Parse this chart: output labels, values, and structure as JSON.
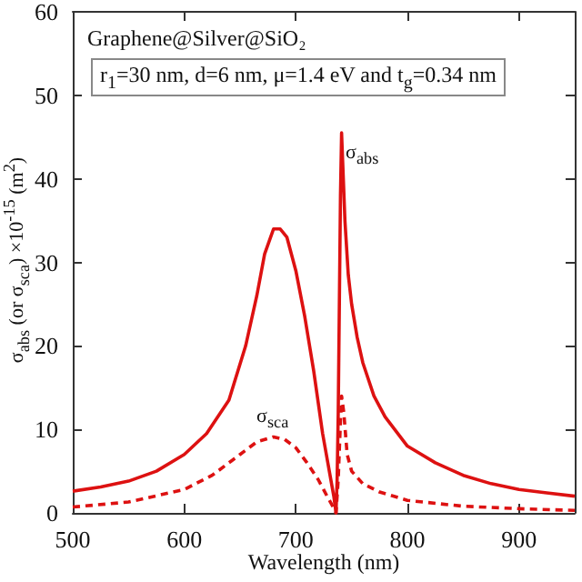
{
  "chart_data": {
    "type": "line",
    "title": "Graphene@Silver@SiO₂",
    "subtitle": "r$_{1}$=30 nm, d=6 nm, μ=1.4 eV and t$_{g}$=0.34 nm",
    "xlabel": "Wavelength (nm)",
    "ylabel": "σ$_{abs}$ (or σ$_{sca}$) ×10$^{-15}$ (m$^{2}$)",
    "xlim": [
      500,
      950
    ],
    "xticks": [
      500,
      600,
      700,
      800,
      900
    ],
    "ylim": [
      0,
      60
    ],
    "yticks": [
      0,
      10,
      20,
      30,
      40,
      50,
      60
    ],
    "grid": false,
    "marker": "none",
    "series": [
      {
        "color": "#dd1111",
        "line_style": "solid",
        "x": [
          500,
          525,
          550,
          575,
          600,
          620,
          640,
          655,
          665,
          672,
          680,
          686,
          692,
          700,
          708,
          716,
          724,
          730,
          734,
          736,
          737,
          738,
          739,
          740,
          741,
          742,
          744,
          747,
          750,
          755,
          760,
          770,
          780,
          800,
          825,
          850,
          875,
          900,
          925,
          950
        ],
        "values": [
          2.6,
          3.1,
          3.8,
          5,
          7,
          9.5,
          13.5,
          20,
          26,
          31,
          34,
          34,
          33,
          29,
          23.5,
          17,
          9.5,
          5,
          2,
          0,
          4,
          12,
          25,
          38,
          45.5,
          42,
          35,
          28.5,
          25,
          21,
          18,
          14,
          11.5,
          8,
          6,
          4.5,
          3.5,
          2.8,
          2.4,
          2
        ]
      },
      {
        "color": "#dd1111",
        "line_style": "dashed",
        "x": [
          500,
          550,
          600,
          625,
          650,
          665,
          680,
          690,
          700,
          710,
          720,
          728,
          733,
          736,
          738,
          740,
          741,
          743,
          746,
          750,
          760,
          775,
          800,
          850,
          900,
          950
        ],
        "values": [
          0.7,
          1.3,
          2.8,
          4.5,
          7,
          8.5,
          9.1,
          8.8,
          7.8,
          6,
          4,
          2,
          0.8,
          0,
          4,
          11,
          14,
          12,
          7,
          5,
          3.5,
          2.5,
          1.5,
          0.8,
          0.5,
          0.3
        ]
      }
    ],
    "annotations": [
      "σ$_{abs}$",
      "σ$_{sca}$"
    ]
  }
}
